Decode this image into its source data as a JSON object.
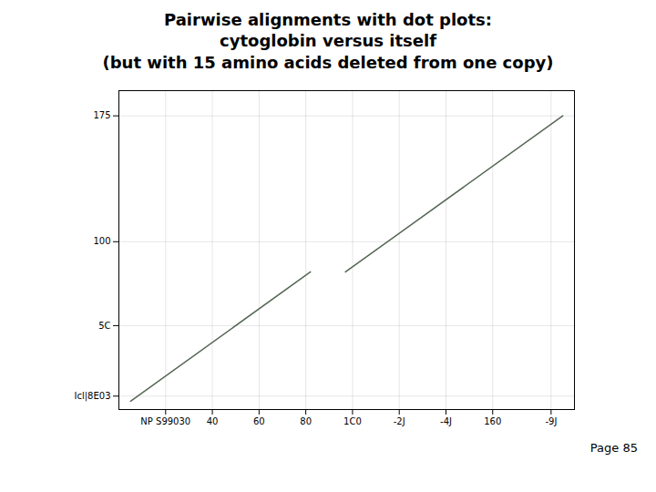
{
  "chart_data": {
    "type": "line",
    "title": "Pairwise alignments with dot plots:\ncytoglobin versus itself\n(but with 15 amino acids deleted from one copy)",
    "series": [
      {
        "x": [
          5,
          82
        ],
        "values": [
          5,
          82
        ],
        "color": "#556655"
      },
      {
        "x": [
          97,
          190
        ],
        "values": [
          82,
          175
        ],
        "color": "#556655"
      }
    ],
    "xlim": [
      0,
      195
    ],
    "ylim": [
      0,
      190
    ],
    "xticks": [
      {
        "value": 20,
        "label": "NP S99030"
      },
      40,
      60,
      80,
      {
        "value": 100,
        "label": "1C0"
      },
      {
        "value": 120,
        "label": "-2J"
      },
      {
        "value": 140,
        "label": "-4J"
      },
      160,
      {
        "value": 185,
        "label": "-9J"
      }
    ],
    "yticks": [
      {
        "value": 8,
        "label": "Icl|8E03"
      },
      {
        "value": 50,
        "label": "5C"
      },
      100,
      175
    ],
    "grid": true,
    "annotations": [
      "Page 85"
    ]
  }
}
